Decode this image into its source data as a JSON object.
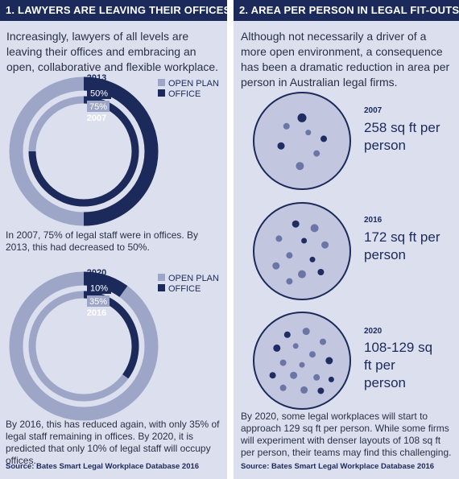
{
  "colors": {
    "navy": "#1b2a5a",
    "open_plan": "#9ea6c8",
    "panel_bg": "#dcdfee",
    "dot_light": "#6c76a6",
    "dot_dark": "#1f2d62"
  },
  "left": {
    "header": "1. LAWYERS ARE LEAVING THEIR OFFICES",
    "intro": "Increasingly, lawyers of all levels are leaving their offices and embracing an open, collaborative and flexible workplace.",
    "caption1": "In 2007, 75% of legal staff were in offices. By 2013, this had decreased to 50%.",
    "caption2": "By 2016, this has reduced again, with only 35% of legal staff remaining in offices. By 2020, it is predicted that only 10% of legal staff will occupy offices.",
    "source": "Source: Bates Smart Legal Workplace Database 2016"
  },
  "right": {
    "header": "2. AREA PER PERSON IN LEGAL FIT-OUTS IS DECREASING",
    "intro": "Although not necessarily a driver of a more open environment, a consequence has been a dramatic reduction in area per person in Australian legal firms.",
    "levels": [
      {
        "year": "2007",
        "area": "258 sq ft per person"
      },
      {
        "year": "2016",
        "area": "172 sq ft per person"
      },
      {
        "year": "2020",
        "area": "108-129 sq ft per person"
      }
    ],
    "closing": "By 2020, some legal workplaces will start to approach 129 sq ft per person. While some firms will experiment with denser layouts of 108 sq ft per person, their teams may find this challenging.",
    "source": "Source: Bates Smart Legal Workplace Database 2016"
  },
  "chart_data": [
    {
      "type": "pie",
      "legend": [
        "OPEN PLAN",
        "OFFICE"
      ],
      "rings": [
        {
          "name": "2013",
          "values": [
            50,
            50
          ],
          "label": "50%"
        },
        {
          "name": "2007",
          "values": [
            25,
            75
          ],
          "label": "75%"
        }
      ]
    },
    {
      "type": "pie",
      "legend": [
        "OPEN PLAN",
        "OFFICE"
      ],
      "rings": [
        {
          "name": "2020",
          "values": [
            90,
            10
          ],
          "label": "10%"
        },
        {
          "name": "2016",
          "values": [
            65,
            35
          ],
          "label": "35%"
        }
      ]
    }
  ]
}
